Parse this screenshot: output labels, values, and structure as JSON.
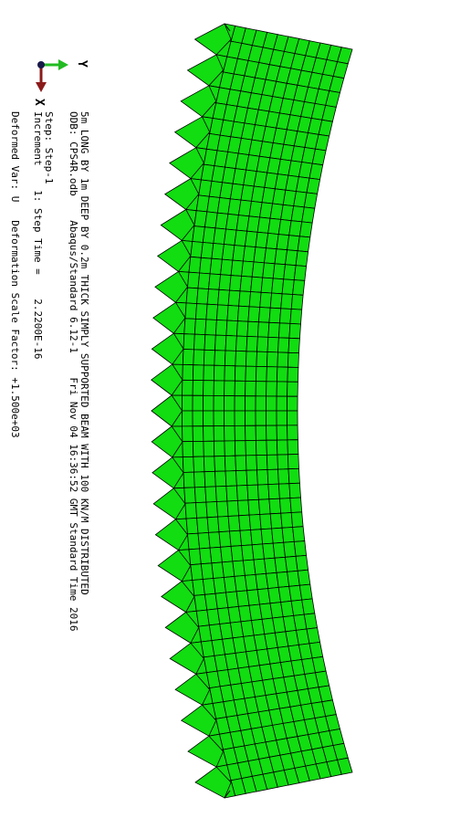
{
  "title_block": {
    "line1": "5m LONG BY 1m DEEP BY 0.2m THICK SIMPLY SUPPORTED BEAM WITH 100 KN/M DISTRIBUTED",
    "line2": "ODB: CPS4R.odb    Abaqus/Standard 6.12-1    Fri Nov 04 16:36:52 GMT Standard Time 2016"
  },
  "state_block": {
    "step": "Step: Step-1",
    "increment": "Increment    1: Step Time =    2.2200E-16"
  },
  "deformation_block": {
    "text": "Deformed Var: U   Deformation Scale Factor: +1.500e+03"
  },
  "triad": {
    "y_label": "Y",
    "x_label": "X",
    "y_color": "#22bb22",
    "x_color": "#8b1a1a",
    "origin_color": "#1a1a4a"
  },
  "mesh": {
    "element_color": "#11dd11",
    "edge_color": "#000000",
    "columns": 50,
    "rows": 12
  }
}
